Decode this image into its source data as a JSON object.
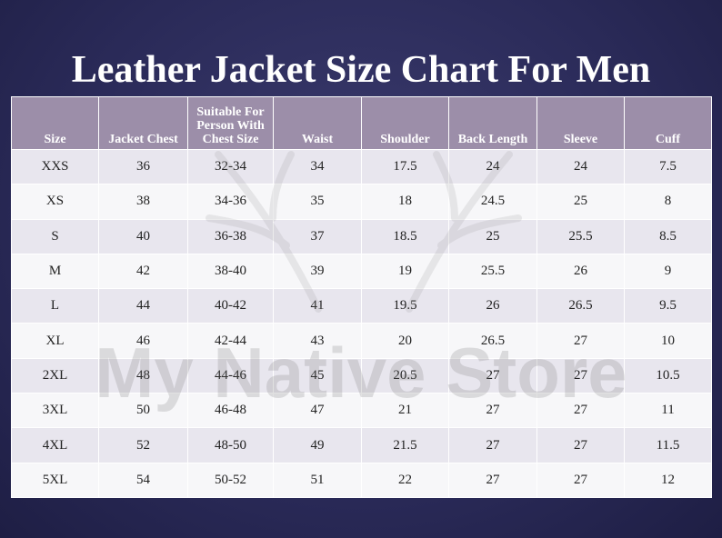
{
  "title": "Leather Jacket Size Chart For Men",
  "watermark": "My Native Store",
  "table": {
    "headers": [
      "Size",
      "Jacket Chest",
      "Suitable For Person With Chest Size",
      "Waist",
      "Shoulder",
      "Back Length",
      "Sleeve",
      "Cuff"
    ],
    "rows": [
      [
        "XXS",
        "36",
        "32-34",
        "34",
        "17.5",
        "24",
        "24",
        "7.5"
      ],
      [
        "XS",
        "38",
        "34-36",
        "35",
        "18",
        "24.5",
        "25",
        "8"
      ],
      [
        "S",
        "40",
        "36-38",
        "37",
        "18.5",
        "25",
        "25.5",
        "8.5"
      ],
      [
        "M",
        "42",
        "38-40",
        "39",
        "19",
        "25.5",
        "26",
        "9"
      ],
      [
        "L",
        "44",
        "40-42",
        "41",
        "19.5",
        "26",
        "26.5",
        "9.5"
      ],
      [
        "XL",
        "46",
        "42-44",
        "43",
        "20",
        "26.5",
        "27",
        "10"
      ],
      [
        "2XL",
        "48",
        "44-46",
        "45",
        "20.5",
        "27",
        "27",
        "10.5"
      ],
      [
        "3XL",
        "50",
        "46-48",
        "47",
        "21",
        "27",
        "27",
        "11"
      ],
      [
        "4XL",
        "52",
        "48-50",
        "49",
        "21.5",
        "27",
        "27",
        "11.5"
      ],
      [
        "5XL",
        "54",
        "50-52",
        "51",
        "22",
        "27",
        "27",
        "12"
      ]
    ]
  }
}
